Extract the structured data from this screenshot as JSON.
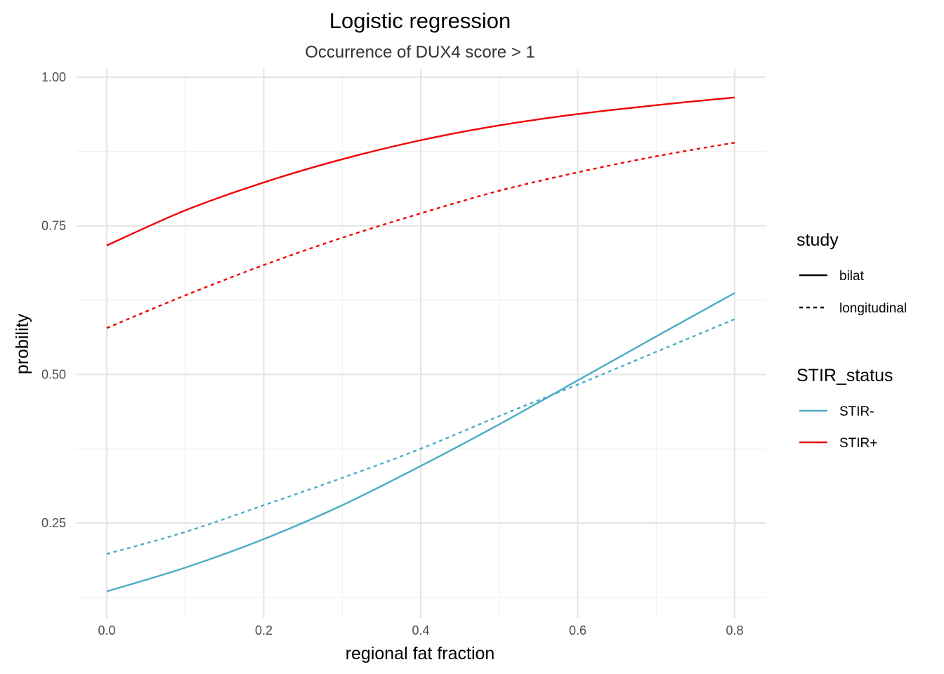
{
  "chart_data": {
    "type": "line",
    "title": "Logistic regression",
    "subtitle": "Occurrence of DUX4 score > 1",
    "xlabel": "regional fat fraction",
    "ylabel": "probility",
    "xlim": [
      0,
      0.8
    ],
    "ylim": [
      0.13,
      1.0
    ],
    "x_ticks": [
      "0.0",
      "0.2",
      "0.4",
      "0.6",
      "0.8"
    ],
    "y_ticks": [
      "0.25",
      "0.50",
      "0.75",
      "1.00"
    ],
    "grid": true,
    "legend_position": "right",
    "legend": [
      {
        "title": "study",
        "entries": [
          {
            "label": "bilat",
            "linetype": "solid"
          },
          {
            "label": "longitudinal",
            "linetype": "dashed"
          }
        ]
      },
      {
        "title": "STIR_status",
        "entries": [
          {
            "label": "STIR-",
            "color": "#4bacc6"
          },
          {
            "label": "STIR+",
            "color": "#ee0000"
          }
        ]
      }
    ],
    "x": [
      0.0,
      0.1,
      0.2,
      0.3,
      0.4,
      0.5,
      0.6,
      0.7,
      0.8
    ],
    "series": [
      {
        "stir_status": "STIR+",
        "study": "bilat",
        "color": "#ee0000",
        "linetype": "solid",
        "values": [
          0.717,
          0.776,
          0.823,
          0.862,
          0.894,
          0.919,
          0.938,
          0.953,
          0.966
        ]
      },
      {
        "stir_status": "STIR+",
        "study": "longitudinal",
        "color": "#ee0000",
        "linetype": "dashed",
        "values": [
          0.578,
          0.633,
          0.684,
          0.73,
          0.771,
          0.809,
          0.84,
          0.867,
          0.89
        ]
      },
      {
        "stir_status": "STIR-",
        "study": "bilat",
        "color": "#4bacc6",
        "linetype": "solid",
        "values": [
          0.135,
          0.175,
          0.223,
          0.28,
          0.346,
          0.416,
          0.49,
          0.564,
          0.637
        ]
      },
      {
        "stir_status": "STIR-",
        "study": "longitudinal",
        "color": "#4bacc6",
        "linetype": "dashed",
        "values": [
          0.198,
          0.235,
          0.28,
          0.326,
          0.375,
          0.43,
          0.483,
          0.538,
          0.593
        ]
      }
    ]
  }
}
